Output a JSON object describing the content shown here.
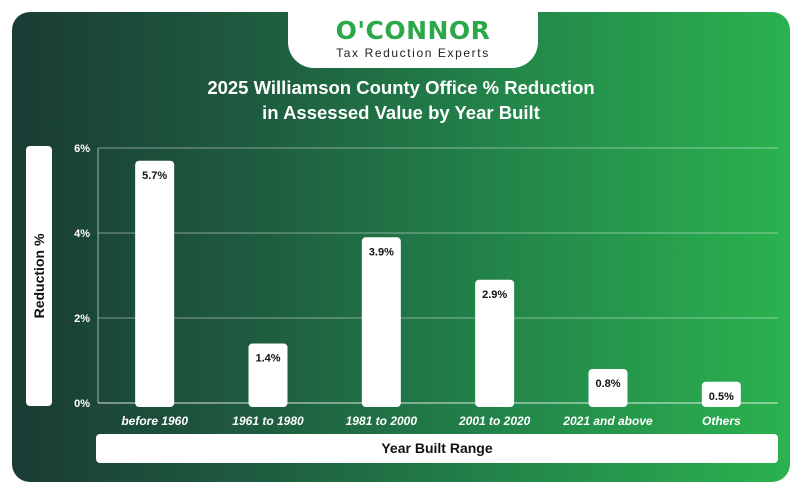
{
  "brand": {
    "name": "O'CONNOR",
    "tagline": "Tax Reduction Experts",
    "logo_color": "#2aa84a"
  },
  "chart_data": {
    "type": "bar",
    "title": "2025 Williamson County Office % Reduction in Assessed Value by Year Built",
    "title_lines": [
      "2025 Williamson County Office % Reduction",
      "in Assessed Value by Year Built"
    ],
    "xlabel": "Year Built Range",
    "ylabel": "Reduction %",
    "categories": [
      "before 1960",
      "1961 to 1980",
      "1981 to 2000",
      "2001 to 2020",
      "2021 and above",
      "Others"
    ],
    "values": [
      5.7,
      1.4,
      3.9,
      2.9,
      0.8,
      0.5
    ],
    "data_labels": [
      "5.7%",
      "1.4%",
      "3.9%",
      "2.9%",
      "0.8%",
      "0.5%"
    ],
    "ylim": [
      0,
      6
    ],
    "yticks": [
      0,
      2,
      4,
      6
    ],
    "ytick_labels": [
      "0%",
      "2%",
      "4%",
      "6%"
    ],
    "grid": true,
    "legend": "none",
    "bar_color": "#ffffff",
    "background_gradient": [
      "#1a3c34",
      "#2bb24f"
    ]
  }
}
